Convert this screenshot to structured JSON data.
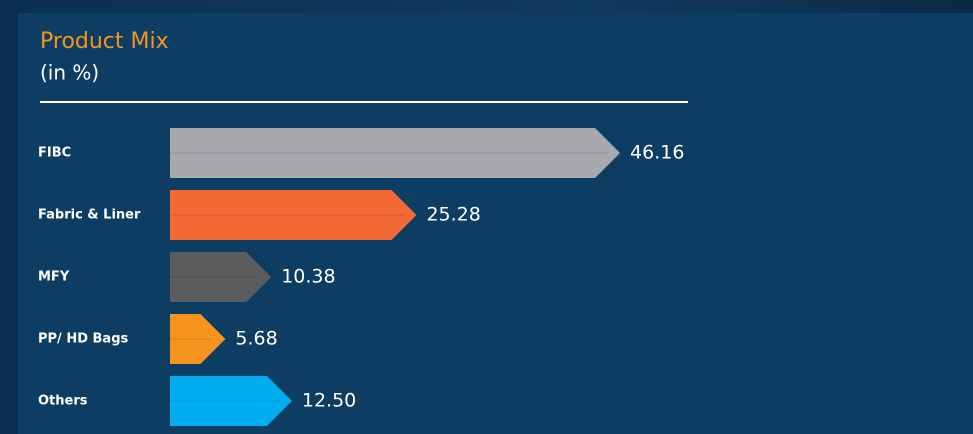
{
  "chart_data": {
    "type": "bar",
    "orientation": "horizontal",
    "title": "Product Mix",
    "subtitle": "(in %)",
    "categories": [
      "FIBC",
      "Fabric & Liner",
      "MFY",
      "PP/ HD Bags",
      "Others"
    ],
    "values": [
      46.16,
      25.28,
      10.38,
      5.68,
      12.5
    ],
    "value_labels": [
      "46.16",
      "25.28",
      "10.38",
      "5.68",
      "12.50"
    ],
    "colors": [
      "#a7a9ac",
      "#f26a35",
      "#5b5c5e",
      "#f7941d",
      "#00aeef"
    ]
  }
}
